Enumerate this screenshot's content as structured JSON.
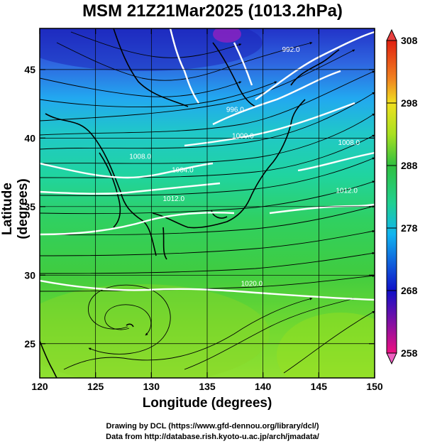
{
  "title": "MSM 21Z21Mar2025 (1013.2hPa)",
  "axes": {
    "xlabel": "Longitude (degrees)",
    "ylabel": "Latitude  (degrees)",
    "xlim": [
      120,
      150
    ],
    "ylim": [
      22.5,
      48
    ],
    "xticks": [
      "120",
      "125",
      "130",
      "135",
      "140",
      "145",
      "150"
    ],
    "yticks": [
      "25",
      "30",
      "35",
      "40",
      "45"
    ]
  },
  "colorbar": {
    "range": [
      258,
      308
    ],
    "ticks": [
      "308",
      "298",
      "288",
      "278",
      "268",
      "258"
    ],
    "colors": [
      "#ee1080",
      "#1010c8",
      "#10b4f0",
      "#20d090",
      "#30c040",
      "#a8e020",
      "#f0e020",
      "#f08020",
      "#e02010"
    ]
  },
  "isobars": [
    {
      "label": "992.0",
      "lon": 142.5,
      "lat": 46.3
    },
    {
      "label": "996.0",
      "lon": 137.5,
      "lat": 41.9
    },
    {
      "label": "1000.0",
      "lon": 138.2,
      "lat": 40.0
    },
    {
      "label": "1004.0",
      "lon": 132.8,
      "lat": 37.5
    },
    {
      "label": "1008.0",
      "lon": 129.0,
      "lat": 38.5
    },
    {
      "label": "1008.0",
      "lon": 147.7,
      "lat": 39.5
    },
    {
      "label": "1012.0",
      "lon": 132.0,
      "lat": 35.4
    },
    {
      "label": "1012.0",
      "lon": 147.5,
      "lat": 36.0
    },
    {
      "label": "1020.0",
      "lon": 139.0,
      "lat": 29.2
    }
  ],
  "credits": [
    "Drawing by DCL (https://www.gfd-dennou.org/library/dcl/)",
    "Data from http://database.rish.kyoto-u.ac.jp/arch/jmadata/"
  ]
}
